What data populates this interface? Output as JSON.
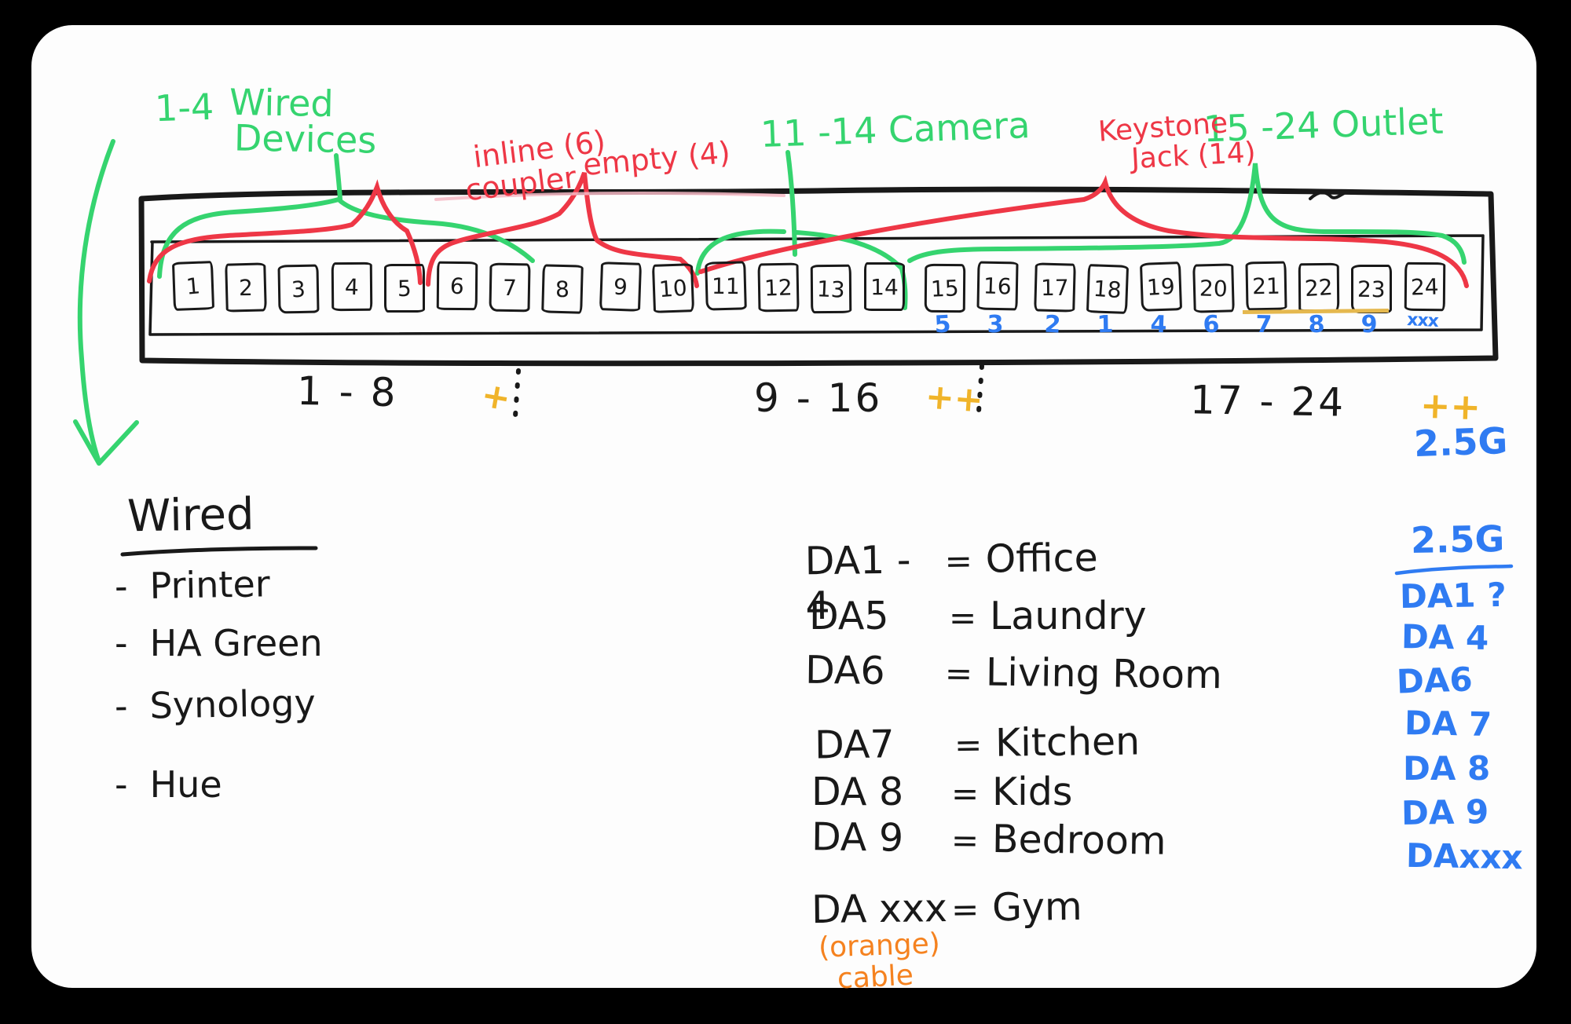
{
  "colors": {
    "green": "#35d46f",
    "red": "#ee3746",
    "blue": "#2f7bf2",
    "orange_plus": "#f0b42a",
    "orange_text": "#f5821f",
    "pink": "#f6b9c4",
    "ink": "#191919",
    "underline_yellow": "#e5b84e",
    "canvas": "#fdfdfd",
    "background": "#000000"
  },
  "top_annotations": {
    "range_wired": "1-4",
    "wired_line1": "Wired",
    "wired_line2": "Devices",
    "inline_coupler_line1": "inline (6)",
    "inline_coupler_line2": "coupler",
    "empty": "empty (4)",
    "camera": "11 -14 Camera",
    "keystone_line1": "Keystone",
    "keystone_line2": "Jack (14)",
    "outlet": "15 -24  Outlet"
  },
  "panel": {
    "ports": [
      {
        "num": "1"
      },
      {
        "num": "2"
      },
      {
        "num": "3"
      },
      {
        "num": "4"
      },
      {
        "num": "5"
      },
      {
        "num": "6"
      },
      {
        "num": "7"
      },
      {
        "num": "8"
      },
      {
        "num": "9"
      },
      {
        "num": "10"
      },
      {
        "num": "11"
      },
      {
        "num": "12"
      },
      {
        "num": "13"
      },
      {
        "num": "14"
      },
      {
        "num": "15",
        "sub": "5"
      },
      {
        "num": "16",
        "sub": "3"
      },
      {
        "num": "17",
        "sub": "2"
      },
      {
        "num": "18",
        "sub": "1"
      },
      {
        "num": "19",
        "sub": "4"
      },
      {
        "num": "20",
        "sub": "6"
      },
      {
        "num": "21",
        "sub": "7"
      },
      {
        "num": "22",
        "sub": "8"
      },
      {
        "num": "23",
        "sub": "9"
      },
      {
        "num": "24",
        "sub": "xxx"
      }
    ]
  },
  "bottom_labels": {
    "group_1_8": "1 - 8",
    "plus_1": "+",
    "group_9_16": "9 - 16",
    "plus_2": "++",
    "group_17_24": "17 - 24",
    "plus_3": "++",
    "speed": "2.5G"
  },
  "wired_list": {
    "title": "Wired",
    "bullet": "-",
    "items": [
      "Printer",
      "HA Green",
      "Synology",
      "Hue"
    ]
  },
  "da_list": {
    "rows": [
      {
        "label": "DA1 - 4",
        "eq": "=",
        "value": "Office"
      },
      {
        "label": "DA5",
        "eq": "=",
        "value": "Laundry"
      },
      {
        "label": "DA6",
        "eq": "=",
        "value": "Living Room"
      },
      {
        "label": "DA7",
        "eq": "=",
        "value": "Kitchen"
      },
      {
        "label": "DA 8",
        "eq": "=",
        "value": "Kids"
      },
      {
        "label": "DA 9",
        "eq": "=",
        "value": "Bedroom"
      },
      {
        "label": "DA xxx",
        "eq": "=",
        "value": "Gym"
      }
    ],
    "note_line1": "(orange)",
    "note_line2": "cable"
  },
  "speed_2_5g_list": {
    "title": "2.5G",
    "items": [
      "DA1  ?",
      "DA 4",
      "DA6",
      "DA 7",
      "DA 8",
      "DA 9",
      "DAxxx"
    ]
  }
}
